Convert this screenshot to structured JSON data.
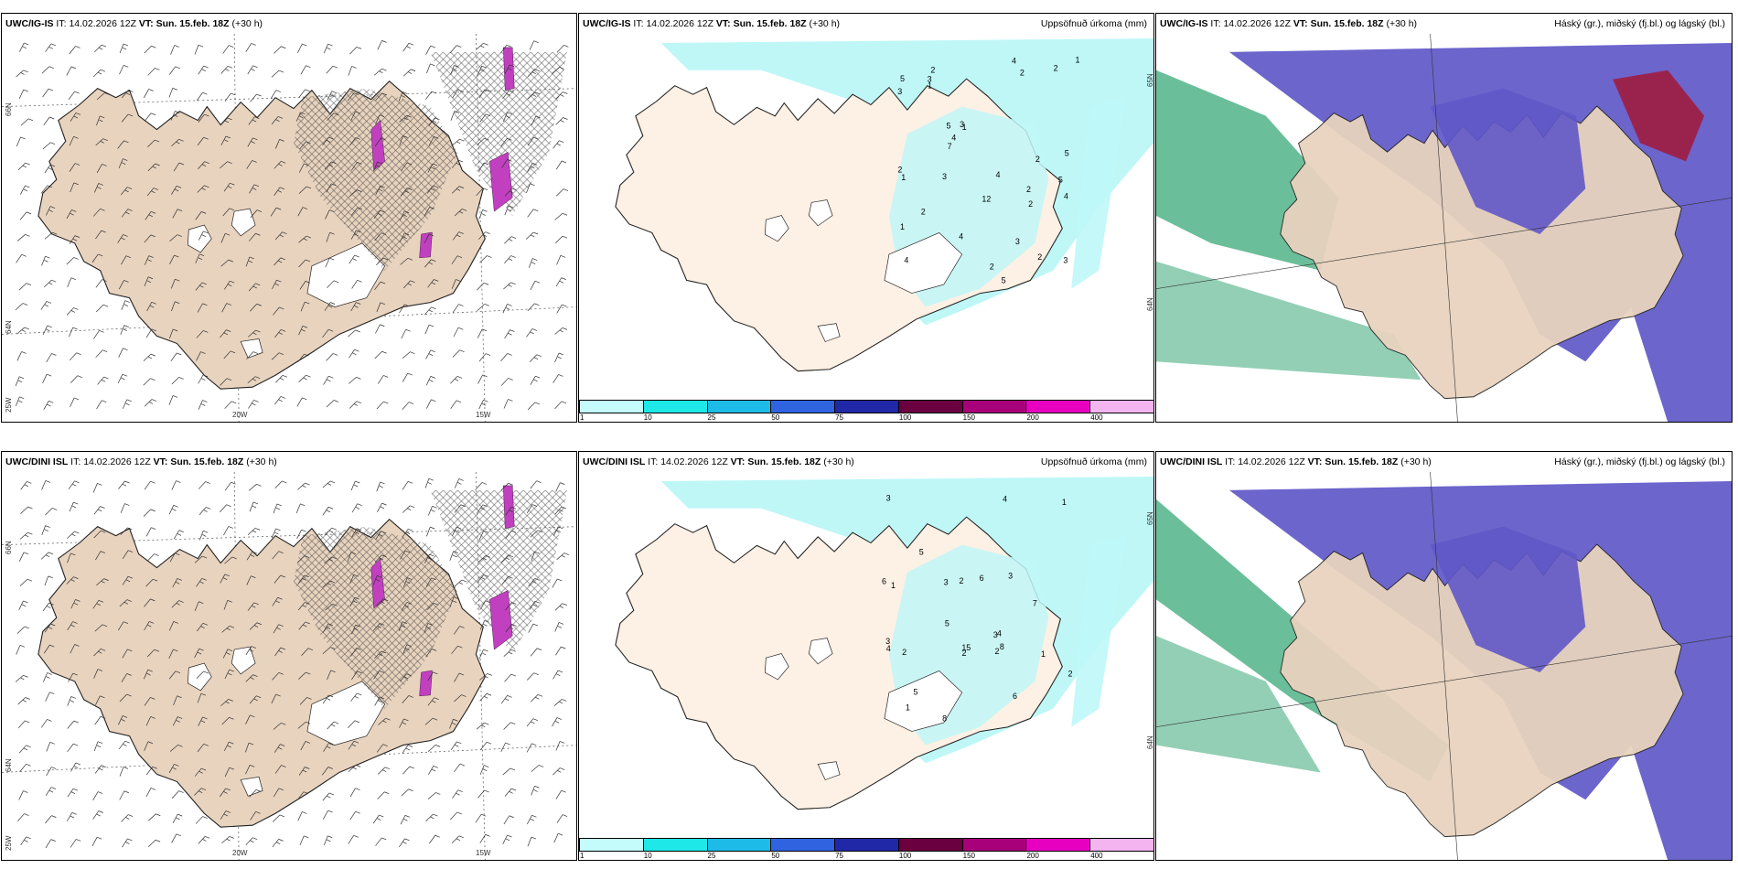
{
  "rows": [
    {
      "model": "UWC/IG-IS",
      "it_label": "IT:",
      "it_value": "14.02.2026 12Z",
      "vt_label": "VT:",
      "vt_value": "Sun. 15.feb. 18Z",
      "lead": "(+30 h)"
    },
    {
      "model": "UWC/DINI ISL",
      "it_label": "IT:",
      "it_value": "14.02.2026 12Z",
      "vt_label": "VT:",
      "vt_value": "Sun. 15.feb. 18Z",
      "lead": "(+30 h)"
    }
  ],
  "precip_title": "Uppsöfnuð úrkoma (mm)",
  "cloud_title": "Háský (gr.), miðský (fj.bl.) og lágský (bl.)",
  "lon_labels": {
    "w20": "20W",
    "w15": "15W",
    "w25": "25W"
  },
  "lat_labels": {
    "n66": "66N",
    "n64": "64N",
    "n65": "65N"
  },
  "colorbar": {
    "ticks": [
      "1",
      "10",
      "25",
      "50",
      "75",
      "100",
      "150",
      "200",
      "400"
    ],
    "colors": [
      "#c4fbfb",
      "#1ee8e8",
      "#1cbbe8",
      "#2f63e0",
      "#2028a8",
      "#6a0040",
      "#a8007a",
      "#e800c0",
      "#f4b4f0"
    ]
  },
  "colors": {
    "land": "#e8d3be",
    "precip_land": "#fdf0e4",
    "cyan": "#bff7f7",
    "magenta": "#c040c0",
    "cloud_high": "#6058c8",
    "cloud_low": "#3aa878",
    "cloud_red": "#a01c40"
  },
  "precip_numbers_top": [
    "2",
    "5",
    "4",
    "2",
    "1",
    "2",
    "1",
    "2",
    "5",
    "5",
    "3",
    "2",
    "5",
    "3",
    "4",
    "5",
    "12",
    "4",
    "3",
    "2",
    "1",
    "2",
    "7",
    "4",
    "4",
    "3",
    "2",
    "1",
    "1",
    "2",
    "2",
    "3",
    "4",
    "3"
  ],
  "precip_numbers_bottom": [
    "8",
    "1",
    "1",
    "2",
    "5",
    "2",
    "7",
    "4",
    "3",
    "6",
    "5",
    "6",
    "2",
    "15",
    "1",
    "2",
    "3",
    "4",
    "8",
    "5",
    "3",
    "3",
    "2",
    "1",
    "3",
    "4",
    "6"
  ]
}
